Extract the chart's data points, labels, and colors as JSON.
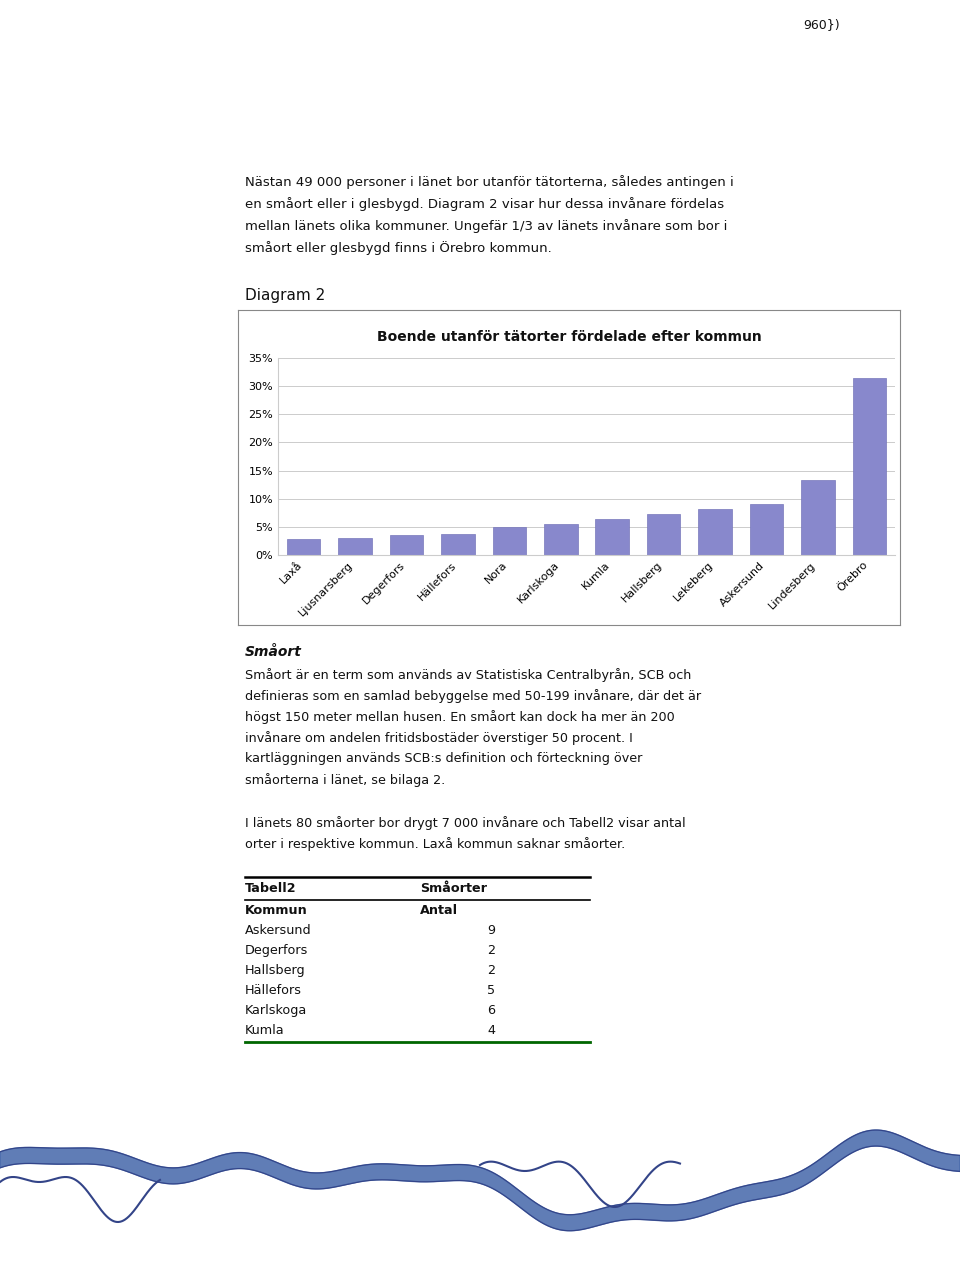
{
  "page_header": "960})",
  "intro_text_lines": [
    "Nästan 49 000 personer i länet bor utanför tätorterna, således antingen i",
    "en småort eller i glesbygd. Diagram 2 visar hur dessa invånare fördelas",
    "mellan länets olika kommuner. Ungefär 1/3 av länets invånare som bor i",
    "småort eller glesbygd finns i Örebro kommun."
  ],
  "diagram_label": "Diagram 2",
  "chart_title": "Boende utanför tätorter fördelade efter kommun",
  "categories": [
    "Laxå",
    "Ljusnarsberg",
    "Degerfors",
    "Hällefors",
    "Nora",
    "Karlskoga",
    "Kumla",
    "Hallsberg",
    "Lekeberg",
    "Askersund",
    "Lindesberg",
    "Örebro"
  ],
  "values": [
    2.8,
    3.0,
    3.6,
    3.8,
    5.0,
    5.5,
    6.4,
    7.2,
    8.2,
    9.0,
    13.3,
    31.5
  ],
  "bar_color": "#8888cc",
  "bar_edge_color": "#7777bb",
  "ylim": [
    0,
    35
  ],
  "yticks": [
    0,
    5,
    10,
    15,
    20,
    25,
    30,
    35
  ],
  "ytick_labels": [
    "0%",
    "5%",
    "10%",
    "15%",
    "20%",
    "25%",
    "30%",
    "35%"
  ],
  "grid_color": "#cccccc",
  "chart_bg_color": "#ffffff",
  "box_border_color": "#888888",
  "smoort_heading": "Småort",
  "smoort_text_lines": [
    "Småort är en term som används av Statistiska Centralbyrån, SCB och",
    "definieras som en samlad bebyggelse med 50-199 invånare, där det är",
    "högst 150 meter mellan husen. En småort kan dock ha mer än 200",
    "invånare om andelen fritidsbostäder överstiger 50 procent. I",
    "kartläggningen används SCB:s definition och förteckning över",
    "småorterna i länet, se bilaga 2."
  ],
  "tabell_text_lines": [
    "I länets 80 småorter bor drygt 7 000 invånare och Tabell2 visar antal",
    "orter i respektive kommun. Laxå kommun saknar småorter."
  ],
  "table_header_col1": "Tabell2",
  "table_header_col2": "Småorter",
  "table_subheader_col1": "Kommun",
  "table_subheader_col2": "Antal",
  "table_rows": [
    [
      "Askersund",
      "9"
    ],
    [
      "Degerfors",
      "2"
    ],
    [
      "Hallsberg",
      "2"
    ],
    [
      "Hällefors",
      "5"
    ],
    [
      "Karlskoga",
      "6"
    ],
    [
      "Kumla",
      "4"
    ]
  ],
  "table_bottom_line_color": "#006600",
  "page_bg_color": "#ffffff",
  "text_color": "#111111",
  "wave_color": "#4466aa"
}
